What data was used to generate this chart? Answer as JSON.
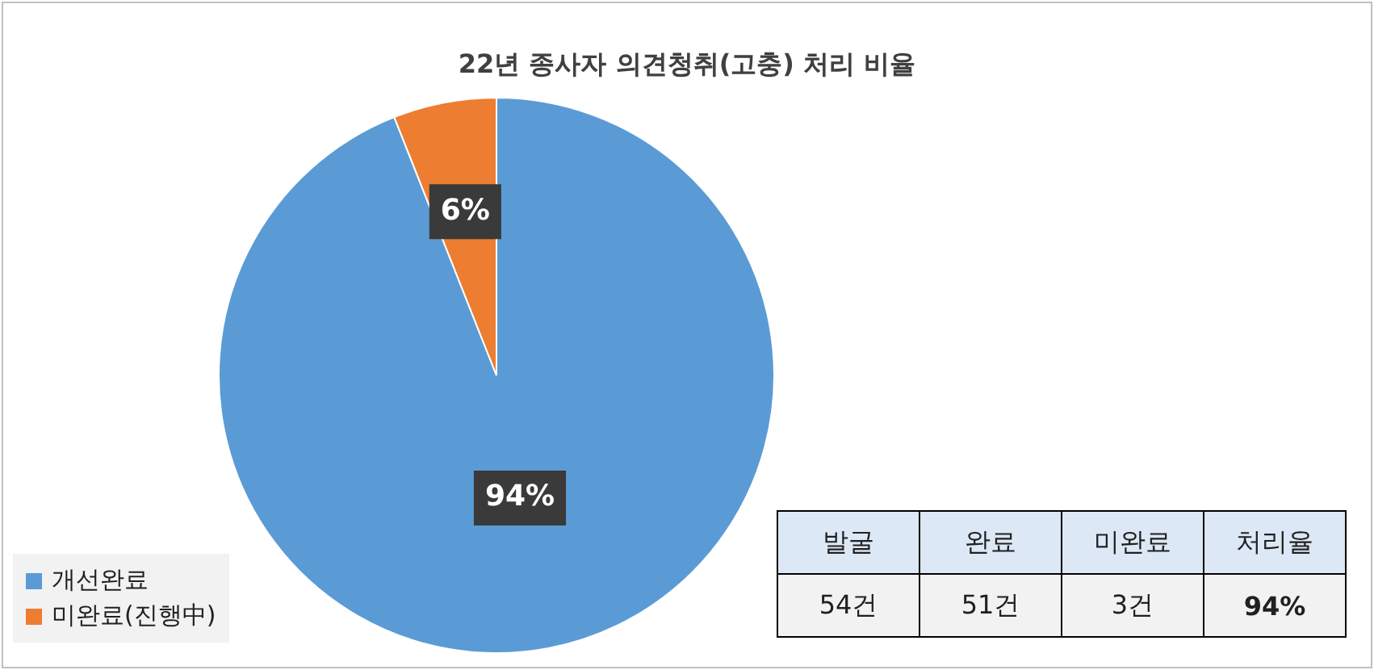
{
  "chart_data": {
    "type": "pie",
    "title": "22년 종사자 의견청취(고충) 처리 비율",
    "categories": [
      "개선완료",
      "미완료(진행中)"
    ],
    "values": [
      94,
      6
    ],
    "colors": [
      "#5b9bd5",
      "#ed7d31"
    ],
    "value_labels": [
      "94%",
      "6%"
    ],
    "legend": "bottom left",
    "annotations": [
      "발굴",
      "완료",
      "미완료",
      "처리율",
      "54건",
      "51건",
      "3건",
      "94%"
    ]
  }
}
